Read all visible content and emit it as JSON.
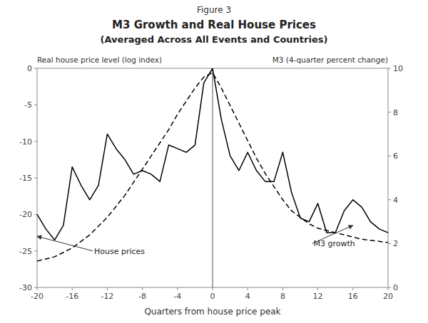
{
  "chart_data": {
    "type": "line",
    "super_title": "Figure 3",
    "title": "M3 Growth and Real House Prices",
    "subtitle": "(Averaged Across All Events and Countries)",
    "xlabel": "Quarters from house price peak",
    "ylabel": "Real house price level (log index)",
    "y2label": "M3 (4-quarter percent change)",
    "xlim": [
      -20,
      20
    ],
    "ylim": [
      -30,
      0
    ],
    "y2lim": [
      0,
      10
    ],
    "xticks": [
      -20,
      -16,
      -12,
      -8,
      -4,
      0,
      4,
      8,
      12,
      16,
      20
    ],
    "yticks": [
      0,
      -5,
      -10,
      -15,
      -20,
      -25,
      -30
    ],
    "y2ticks": [
      0,
      2,
      4,
      6,
      8,
      10
    ],
    "grid": false,
    "x": [
      -20,
      -19,
      -18,
      -17,
      -16,
      -15,
      -14,
      -13,
      -12,
      -11,
      -10,
      -9,
      -8,
      -7,
      -6,
      -5,
      -4,
      -3,
      -2,
      -1,
      0,
      1,
      2,
      3,
      4,
      5,
      6,
      7,
      8,
      9,
      10,
      11,
      12,
      13,
      14,
      15,
      16,
      17,
      18,
      19,
      20
    ],
    "series": [
      {
        "color": "black",
        "line_style": "solid",
        "axis": "y",
        "values": [
          -20,
          -22,
          -23.5,
          -21.5,
          -13.5,
          -16,
          -18,
          -16,
          -9,
          -11,
          -12.5,
          -14.5,
          -14,
          -14.5,
          -15.5,
          -10.5,
          -11,
          -11.5,
          -10.5,
          -2,
          0,
          -7,
          -12,
          -14,
          -11.5,
          -14,
          -15.5,
          -15.5,
          -11.5,
          -17,
          -20.5,
          -21,
          -18.5,
          -22.5,
          -22.5,
          -19.5,
          -18,
          -19,
          -21,
          -22,
          -22.5
        ]
      },
      {
        "color": "black",
        "line_style": "dashed",
        "axis": "y2",
        "values": [
          1.2,
          1.3,
          1.4,
          1.6,
          1.8,
          2.1,
          2.4,
          2.8,
          3.2,
          3.7,
          4.2,
          4.8,
          5.4,
          6.0,
          6.6,
          7.2,
          7.9,
          8.5,
          9.1,
          9.6,
          9.8,
          9.1,
          8.3,
          7.5,
          6.7,
          5.9,
          5.2,
          4.6,
          4.0,
          3.5,
          3.2,
          2.9,
          2.7,
          2.6,
          2.5,
          2.4,
          2.3,
          2.2,
          2.15,
          2.1,
          2.05
        ]
      }
    ],
    "vlines": [
      0
    ],
    "annotations": [
      {
        "text": "House prices",
        "x": -13.5,
        "y": -25.0,
        "arrow_x": -20,
        "arrow_y": -23.0
      },
      {
        "text": "M3 growth",
        "x": 11.5,
        "y": -24.0,
        "arrow_x": 16.0,
        "arrow_y": -21.5
      }
    ]
  }
}
